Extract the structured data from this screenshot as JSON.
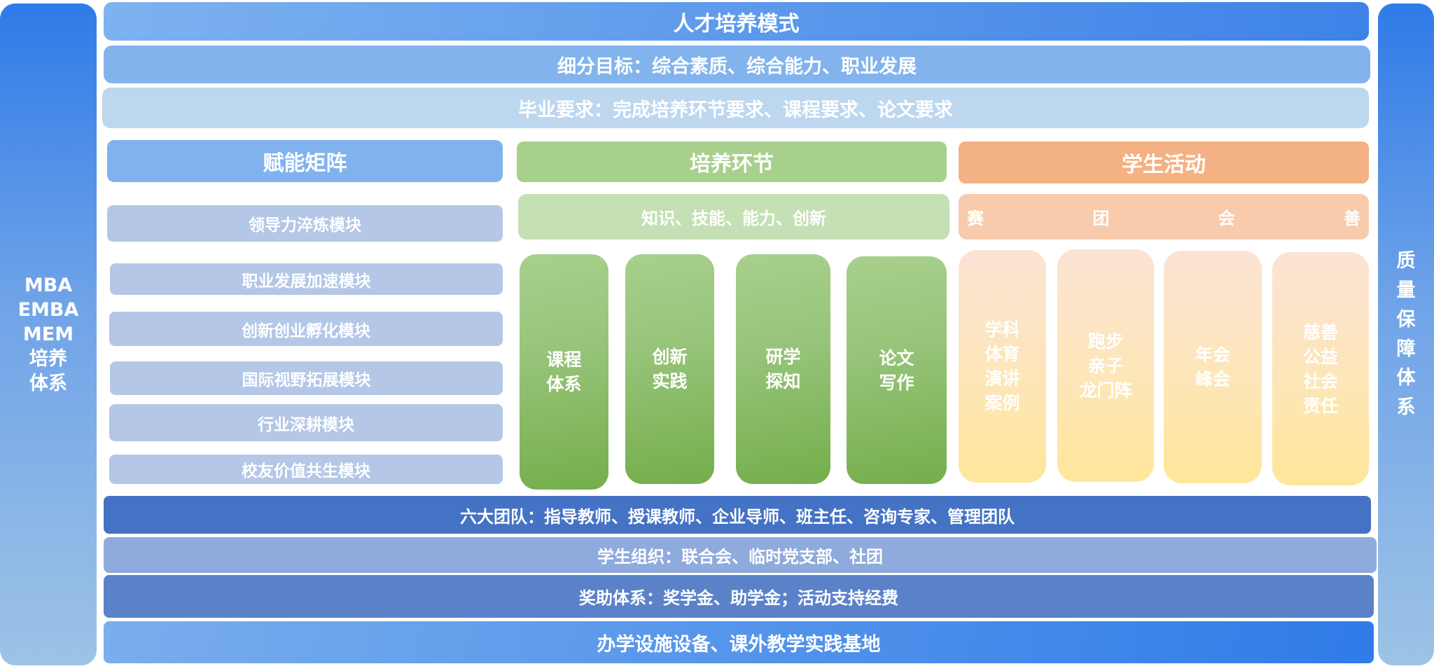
{
  "left_side": {
    "lines": [
      "MBA",
      "EMBA",
      "MEM",
      "培养",
      "体系"
    ]
  },
  "right_side": {
    "chars": [
      "质",
      "量",
      "保",
      "障",
      "体",
      "系"
    ]
  },
  "top": {
    "title": "人才培养模式",
    "goals": "细分目标：综合素质、综合能力、职业发展",
    "graduation": "毕业要求：完成培养环节要求、课程要求、论文要求"
  },
  "empower": {
    "header": "赋能矩阵",
    "modules": [
      "领导力淬炼模块",
      "职业发展加速模块",
      "创新创业孵化模块",
      "国际视野拓展模块",
      "行业深耕模块",
      "校友价值共生模块"
    ]
  },
  "training": {
    "header": "培养环节",
    "sub": "知识、技能、能力、创新",
    "columns": [
      [
        "课程",
        "体系"
      ],
      [
        "创新",
        "实践"
      ],
      [
        "研学",
        "探知"
      ],
      [
        "论文",
        "写作"
      ]
    ]
  },
  "activities": {
    "header": "学生活动",
    "sub": [
      "赛",
      "团",
      "会",
      "善"
    ],
    "columns": [
      [
        "学科",
        "体育",
        "演讲",
        "案例"
      ],
      [
        "跑步",
        "亲子",
        "龙门阵"
      ],
      [
        "年会",
        "峰会"
      ],
      [
        "慈善",
        "公益",
        "社会",
        "责任"
      ]
    ]
  },
  "bottom": {
    "teams": "六大团队：指导教师、授课教师、企业导师、班主任、咨询专家、管理团队",
    "orgs": "学生组织：联合会、临时党支部、社团",
    "funding": "奖助体系：奖学金、助学金；活动支持经费",
    "facilities": "办学设施设备、课外教学实践基地"
  },
  "colors": {
    "blue_dark": "#4472c4",
    "blue_light": "#b4c7e7",
    "green": "#a8d08d",
    "orange": "#f4b183"
  }
}
